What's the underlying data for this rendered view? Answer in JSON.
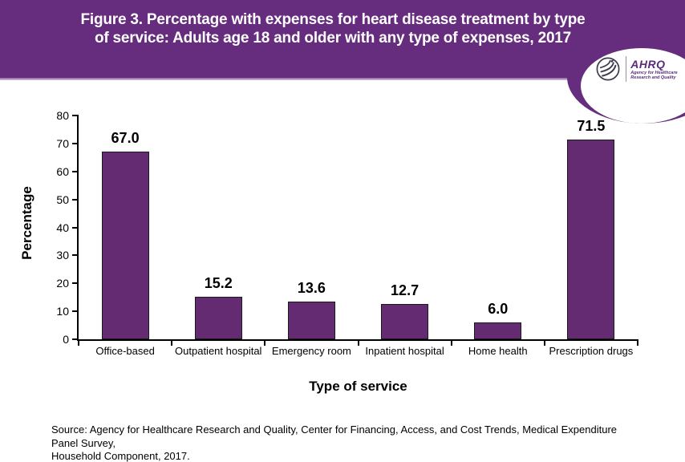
{
  "figure": {
    "title_line1": "Figure 3. Percentage with expenses for heart disease treatment by type",
    "title_line2": "of service: Adults age 18 and older with any type of expenses, 2017"
  },
  "logo": {
    "ahrq_text": "AHRQ",
    "tagline_line1": "Agency for Healthcare",
    "tagline_line2": "Research and Quality"
  },
  "chart_data": {
    "type": "bar",
    "title": "Figure 3. Percentage with expenses for heart disease treatment by type of service: Adults age 18 and older with any type of expenses, 2017",
    "categories": [
      "Office-based",
      "Outpatient hospital",
      "Emergency room",
      "Inpatient hospital",
      "Home health",
      "Prescription drugs"
    ],
    "values": [
      67.0,
      15.2,
      13.6,
      12.7,
      6.0,
      71.5
    ],
    "data_labels": [
      "67.0",
      "15.2",
      "13.6",
      "12.7",
      "6.0",
      "71.5"
    ],
    "xlabel": "Type of service",
    "ylabel": "Percentage",
    "ylim": [
      0,
      80
    ],
    "ytick_step": 10,
    "ytick_labels": [
      "0",
      "10",
      "20",
      "30",
      "40",
      "50",
      "60",
      "70",
      "80"
    ],
    "grid": false,
    "legend": "none"
  },
  "source": {
    "line1": "Source: Agency for Healthcare Research and Quality, Center for Financing, Access, and Cost Trends, Medical Expenditure Panel Survey,",
    "line2": "Household Component, 2017."
  },
  "colors": {
    "header_bg": "#662C7D",
    "bar_fill": "#652B72",
    "bar_border": "#1A1A1A",
    "axis": "#000000",
    "title_text": "#FFFFFF",
    "logo_purple": "#5B2D7D"
  }
}
